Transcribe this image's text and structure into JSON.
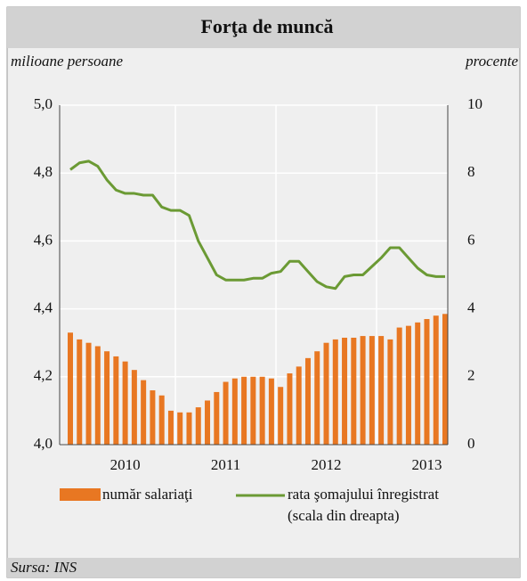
{
  "chart_data": {
    "type": "bar_line",
    "title": "Forţa de muncă",
    "y_axis_label": "milioane persoane",
    "y2_axis_label": "procente",
    "source": "Sursa: INS",
    "legend_note": "(scala din dreapta)",
    "categories": [
      null,
      null,
      null,
      null,
      null,
      null,
      "2010",
      null,
      null,
      null,
      null,
      null,
      null,
      null,
      null,
      null,
      null,
      "2011",
      null,
      null,
      null,
      null,
      null,
      null,
      null,
      null,
      null,
      null,
      "2012",
      null,
      null,
      null,
      null,
      null,
      null,
      null,
      null,
      null,
      null,
      "2013",
      null,
      null
    ],
    "series": [
      {
        "name": "număr salariaţi",
        "color": "#e87722",
        "type": "bar",
        "values": [
          4.33,
          4.31,
          4.3,
          4.29,
          4.275,
          4.26,
          4.245,
          4.22,
          4.19,
          4.16,
          4.145,
          4.1,
          4.095,
          4.095,
          4.11,
          4.13,
          4.155,
          4.185,
          4.195,
          4.2,
          4.2,
          4.2,
          4.195,
          4.17,
          4.21,
          4.23,
          4.255,
          4.275,
          4.3,
          4.31,
          4.315,
          4.315,
          4.32,
          4.32,
          4.32,
          4.31,
          4.345,
          4.35,
          4.36,
          4.37,
          4.38,
          4.385
        ]
      },
      {
        "name": "rata şomajului înregistrat",
        "color": "#6b9a34",
        "type": "line",
        "axis": "y2",
        "values": [
          8.1,
          8.3,
          8.35,
          8.2,
          7.8,
          7.5,
          7.4,
          7.4,
          7.35,
          7.35,
          7.0,
          6.9,
          6.9,
          6.75,
          6.0,
          5.5,
          5.0,
          4.85,
          4.85,
          4.85,
          4.9,
          4.9,
          5.05,
          5.1,
          5.4,
          5.4,
          5.1,
          4.8,
          4.65,
          4.6,
          4.95,
          5.0,
          5.0,
          5.25,
          5.5,
          5.8,
          5.8,
          5.5,
          5.2,
          5.0,
          4.95,
          4.95
        ]
      }
    ],
    "ylim": [
      4.0,
      5.0
    ],
    "yticks": [
      {
        "value": 4.0,
        "label": "4,0"
      },
      {
        "value": 4.2,
        "label": "4,2"
      },
      {
        "value": 4.4,
        "label": "4,4"
      },
      {
        "value": 4.6,
        "label": "4,6"
      },
      {
        "value": 4.8,
        "label": "4,8"
      },
      {
        "value": 5.0,
        "label": "5,0"
      }
    ],
    "y2lim": [
      0,
      10
    ],
    "y2ticks": [
      0,
      2,
      4,
      6,
      8,
      10
    ],
    "grid": true
  }
}
